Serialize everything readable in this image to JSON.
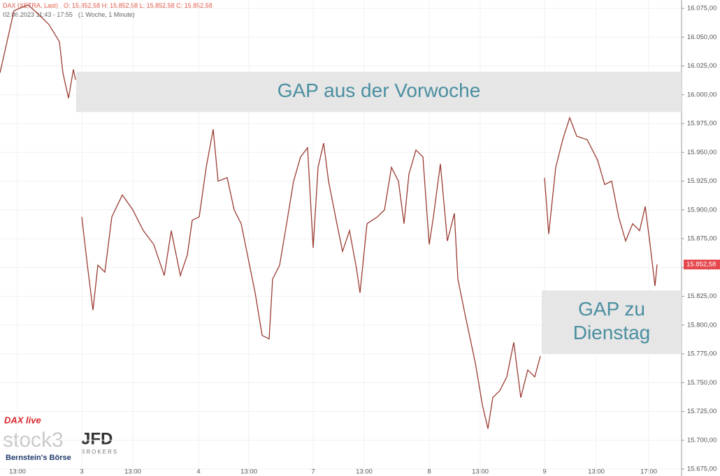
{
  "chart_data": {
    "type": "line",
    "header": {
      "title": "DAX (XETRA, Last)",
      "ohlc": "O: 15.852,58  H: 15.852,58  L: 15.852,58  C: 15.852,58",
      "range": "02.08.2023 11:43 - 17:55",
      "interval": "(1 Woche, 1 Minute)"
    },
    "series": [
      {
        "color": "#9a3b32",
        "x": [
          0,
          1,
          2,
          4,
          5.5,
          7,
          8.5,
          9,
          9.8,
          10.5,
          10.8,
          null,
          11.7,
          12.5,
          13.3,
          14,
          15,
          16,
          17.5,
          19,
          20.5,
          22,
          23.5,
          24.5,
          25.8,
          26.8,
          27.5,
          28.5,
          29.5,
          30.5,
          31.2,
          32.5,
          33.5,
          34.5,
          35.5,
          36.5,
          37.5,
          38.5,
          39,
          40,
          41,
          42,
          43,
          44,
          44.8,
          45.5,
          46.3,
          47,
          48,
          49,
          50,
          51,
          51.5,
          52.5,
          54,
          55,
          56,
          57,
          57.8,
          58.5,
          59.5,
          60.5,
          61.4,
          62,
          63,
          64,
          65,
          65.5,
          66.5,
          68,
          69,
          69.8,
          70.5,
          71.5,
          72.5,
          73.5,
          74.5,
          75.5,
          76.5,
          77.3,
          null,
          77.9,
          78.5,
          79.5,
          80.5,
          81.5,
          82.5,
          84,
          85.5,
          86.5,
          87.5,
          88.5,
          89.5,
          90.5,
          91.5,
          92.3,
          93,
          93.7,
          94
        ],
        "values": [
          16019,
          16046,
          16073,
          16078,
          16070,
          16061,
          16046,
          16019,
          15997,
          16022,
          16013,
          null,
          15894,
          15852,
          15813,
          15852,
          15846,
          15894,
          15913,
          15900,
          15882,
          15870,
          15843,
          15882,
          15843,
          15861,
          15891,
          15894,
          15937,
          15970,
          15925,
          15928,
          15900,
          15888,
          15858,
          15828,
          15791,
          15788,
          15840,
          15852,
          15888,
          15925,
          15946,
          15954,
          15867,
          15937,
          15958,
          15925,
          15894,
          15864,
          15882,
          15849,
          15828,
          15888,
          15894,
          15900,
          15937,
          15925,
          15888,
          15931,
          15952,
          15946,
          15870,
          15894,
          15940,
          15873,
          15897,
          15840,
          15810,
          15767,
          15731,
          15710,
          15737,
          15743,
          15755,
          15785,
          15737,
          15761,
          15755,
          15773,
          null,
          15928,
          15879,
          15937,
          15961,
          15980,
          15964,
          15961,
          15943,
          15922,
          15925,
          15894,
          15873,
          15888,
          15882,
          15903,
          15870,
          15834,
          15852.58
        ]
      }
    ],
    "last": 15852.58,
    "last_label": "15.852,58",
    "xlim": [
      0,
      97.5
    ],
    "xticks": [
      {
        "value": 2.5,
        "label": "13:00"
      },
      {
        "value": 11.7,
        "label": "3"
      },
      {
        "value": 19,
        "label": "13:00"
      },
      {
        "value": 28.4,
        "label": "4"
      },
      {
        "value": 35.6,
        "label": "13:00"
      },
      {
        "value": 44.8,
        "label": "7"
      },
      {
        "value": 52.1,
        "label": "13:00"
      },
      {
        "value": 61.4,
        "label": "8"
      },
      {
        "value": 68.7,
        "label": "13:00"
      },
      {
        "value": 77.9,
        "label": "9"
      },
      {
        "value": 85.3,
        "label": "13:00"
      },
      {
        "value": 92.8,
        "label": "17:00"
      }
    ],
    "ylim": [
      15675,
      16075
    ],
    "yticks": [
      {
        "value": 16075,
        "label": "16.075,00"
      },
      {
        "value": 16050,
        "label": "16.050,00"
      },
      {
        "value": 16025,
        "label": "16.025,00"
      },
      {
        "value": 16000,
        "label": "16.000,00"
      },
      {
        "value": 15975,
        "label": "15.975,00"
      },
      {
        "value": 15950,
        "label": "15.950,00"
      },
      {
        "value": 15925,
        "label": "15.925,00"
      },
      {
        "value": 15900,
        "label": "15.900,00"
      },
      {
        "value": 15875,
        "label": "15.875,00"
      },
      {
        "value": 15850,
        "label": "15.850,00"
      },
      {
        "value": 15825,
        "label": "15.825,00"
      },
      {
        "value": 15800,
        "label": "15.800,00"
      },
      {
        "value": 15775,
        "label": "15.775,00"
      },
      {
        "value": 15750,
        "label": "15.750,00"
      },
      {
        "value": 15725,
        "label": "15.725,00"
      },
      {
        "value": 15700,
        "label": "15.700,00"
      },
      {
        "value": 15675,
        "label": "15.675,00"
      }
    ],
    "grid": true,
    "annotations": [
      {
        "xrange": [
          10.9,
          97.5
        ],
        "yrange": [
          15985,
          16020
        ],
        "lines": [
          "GAP aus der Vorwoche"
        ]
      },
      {
        "xrange": [
          77.5,
          97.5
        ],
        "yrange": [
          15775,
          15830
        ],
        "lines": [
          "GAP zu",
          "Dienstag"
        ]
      }
    ],
    "logos": {
      "daxlive": "DAX live",
      "stock": "stock3",
      "jfd": "JFD",
      "brokers": "BROKERS",
      "bernstein": "Bernstein's Börse"
    }
  }
}
